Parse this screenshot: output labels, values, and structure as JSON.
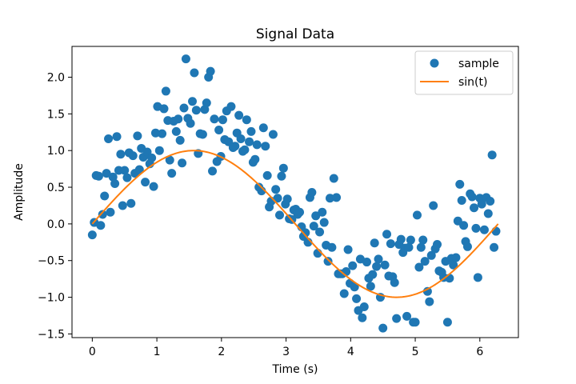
{
  "chart_data": {
    "type": "scatter",
    "title": "Signal Data",
    "xlabel": "Time (s)",
    "ylabel": "Amplitude",
    "xlim": [
      -0.314,
      6.597
    ],
    "ylim": [
      -1.55,
      2.42
    ],
    "xticks": [
      0,
      1,
      2,
      3,
      4,
      5,
      6
    ],
    "yticks": [
      -1.5,
      -1.0,
      -0.5,
      0.0,
      0.5,
      1.0,
      1.5,
      2.0
    ],
    "xtick_labels": [
      "0",
      "1",
      "2",
      "3",
      "4",
      "5",
      "6"
    ],
    "ytick_labels": [
      "−1.5",
      "−1.0",
      "−0.5",
      "0.0",
      "0.5",
      "1.0",
      "1.5",
      "2.0"
    ],
    "grid": false,
    "legend": {
      "placement": "upper right",
      "entries": [
        "sample",
        "sin(t)"
      ]
    },
    "colors": {
      "sample": "#1f77b4",
      "line": "#ff7f0e"
    },
    "series": [
      {
        "name": "sample",
        "kind": "scatter",
        "points": [
          [
            0.0,
            -0.15
          ],
          [
            0.03,
            0.02
          ],
          [
            0.06,
            0.66
          ],
          [
            0.1,
            0.65
          ],
          [
            0.13,
            -0.02
          ],
          [
            0.16,
            0.13
          ],
          [
            0.19,
            0.38
          ],
          [
            0.22,
            0.69
          ],
          [
            0.25,
            1.16
          ],
          [
            0.28,
            0.16
          ],
          [
            0.32,
            0.64
          ],
          [
            0.35,
            0.55
          ],
          [
            0.38,
            1.19
          ],
          [
            0.41,
            0.73
          ],
          [
            0.44,
            0.95
          ],
          [
            0.47,
            0.25
          ],
          [
            0.5,
            0.73
          ],
          [
            0.54,
            0.63
          ],
          [
            0.57,
            0.97
          ],
          [
            0.6,
            0.28
          ],
          [
            0.63,
            0.93
          ],
          [
            0.66,
            0.69
          ],
          [
            0.7,
            1.2
          ],
          [
            0.73,
            0.74
          ],
          [
            0.76,
            1.03
          ],
          [
            0.79,
            0.91
          ],
          [
            0.82,
            0.57
          ],
          [
            0.85,
            0.98
          ],
          [
            0.89,
            0.82
          ],
          [
            0.92,
            0.9
          ],
          [
            0.95,
            0.51
          ],
          [
            0.98,
            1.24
          ],
          [
            1.01,
            1.6
          ],
          [
            1.04,
            1.0
          ],
          [
            1.08,
            1.23
          ],
          [
            1.11,
            1.57
          ],
          [
            1.14,
            1.81
          ],
          [
            1.17,
            1.41
          ],
          [
            1.2,
            0.87
          ],
          [
            1.23,
            0.69
          ],
          [
            1.26,
            1.4
          ],
          [
            1.3,
            1.26
          ],
          [
            1.33,
            1.43
          ],
          [
            1.36,
            1.14
          ],
          [
            1.39,
            0.83
          ],
          [
            1.42,
            1.58
          ],
          [
            1.45,
            2.25
          ],
          [
            1.48,
            1.44
          ],
          [
            1.52,
            1.37
          ],
          [
            1.55,
            1.67
          ],
          [
            1.58,
            2.06
          ],
          [
            1.61,
            1.55
          ],
          [
            1.64,
            0.96
          ],
          [
            1.67,
            1.23
          ],
          [
            1.71,
            1.22
          ],
          [
            1.74,
            1.56
          ],
          [
            1.77,
            1.65
          ],
          [
            1.8,
            2.0
          ],
          [
            1.83,
            2.08
          ],
          [
            1.86,
            0.72
          ],
          [
            1.89,
            1.43
          ],
          [
            1.93,
            0.85
          ],
          [
            1.96,
            1.28
          ],
          [
            1.99,
            0.92
          ],
          [
            2.02,
            1.42
          ],
          [
            2.05,
            1.15
          ],
          [
            2.08,
            1.54
          ],
          [
            2.11,
            1.12
          ],
          [
            2.15,
            1.6
          ],
          [
            2.18,
            1.04
          ],
          [
            2.21,
            1.06
          ],
          [
            2.24,
            1.24
          ],
          [
            2.27,
            1.48
          ],
          [
            2.3,
            1.16
          ],
          [
            2.33,
            0.99
          ],
          [
            2.36,
            1.01
          ],
          [
            2.39,
            1.42
          ],
          [
            2.43,
            1.12
          ],
          [
            2.46,
            1.26
          ],
          [
            2.49,
            0.84
          ],
          [
            2.52,
            0.88
          ],
          [
            2.55,
            1.08
          ],
          [
            2.58,
            0.5
          ],
          [
            2.62,
            0.45
          ],
          [
            2.65,
            1.31
          ],
          [
            2.68,
            1.06
          ],
          [
            2.71,
            0.66
          ],
          [
            2.74,
            0.23
          ],
          [
            2.77,
            0.31
          ],
          [
            2.8,
            1.22
          ],
          [
            2.84,
            0.47
          ],
          [
            2.87,
            0.35
          ],
          [
            2.9,
            0.12
          ],
          [
            2.93,
            0.65
          ],
          [
            2.96,
            0.76
          ],
          [
            2.99,
            0.27
          ],
          [
            3.02,
            0.34
          ],
          [
            3.05,
            0.07
          ],
          [
            3.09,
            0.06
          ],
          [
            3.12,
            0.19
          ],
          [
            3.15,
            0.2
          ],
          [
            3.18,
            0.13
          ],
          [
            3.21,
            0.16
          ],
          [
            3.24,
            -0.04
          ],
          [
            3.27,
            -0.17
          ],
          [
            3.3,
            -0.12
          ],
          [
            3.34,
            -0.25
          ],
          [
            3.37,
            0.36
          ],
          [
            3.4,
            0.43
          ],
          [
            3.43,
            -0.03
          ],
          [
            3.46,
            0.11
          ],
          [
            3.49,
            -0.4
          ],
          [
            3.52,
            -0.11
          ],
          [
            3.56,
            0.16
          ],
          [
            3.59,
            0.02
          ],
          [
            3.62,
            -0.29
          ],
          [
            3.65,
            -0.51
          ],
          [
            3.68,
            0.35
          ],
          [
            3.71,
            -0.32
          ],
          [
            3.74,
            0.62
          ],
          [
            3.78,
            0.36
          ],
          [
            3.81,
            -0.68
          ],
          [
            3.84,
            -0.68
          ],
          [
            3.87,
            -0.68
          ],
          [
            3.9,
            -0.95
          ],
          [
            3.93,
            -0.65
          ],
          [
            3.96,
            -0.35
          ],
          [
            3.99,
            -0.81
          ],
          [
            4.03,
            -0.57
          ],
          [
            4.06,
            -0.86
          ],
          [
            4.09,
            -1.02
          ],
          [
            4.12,
            -1.18
          ],
          [
            4.15,
            -0.48
          ],
          [
            4.18,
            -1.28
          ],
          [
            4.21,
            -1.13
          ],
          [
            4.25,
            -0.52
          ],
          [
            4.28,
            -0.74
          ],
          [
            4.31,
            -0.85
          ],
          [
            4.34,
            -0.69
          ],
          [
            4.37,
            -0.26
          ],
          [
            4.4,
            -0.58
          ],
          [
            4.43,
            -0.48
          ],
          [
            4.46,
            -1.0
          ],
          [
            4.5,
            -1.42
          ],
          [
            4.53,
            -0.56
          ],
          [
            4.56,
            -0.14
          ],
          [
            4.59,
            -0.71
          ],
          [
            4.62,
            -0.27
          ],
          [
            4.65,
            -0.72
          ],
          [
            4.68,
            -0.8
          ],
          [
            4.71,
            -1.29
          ],
          [
            4.75,
            -0.28
          ],
          [
            4.78,
            -0.21
          ],
          [
            4.81,
            -0.39
          ],
          [
            4.84,
            -0.33
          ],
          [
            4.87,
            -1.26
          ],
          [
            4.9,
            -0.32
          ],
          [
            4.93,
            -0.22
          ],
          [
            4.97,
            -1.34
          ],
          [
            5.0,
            -1.34
          ],
          [
            5.03,
            0.12
          ],
          [
            5.06,
            -0.59
          ],
          [
            5.09,
            -0.32
          ],
          [
            5.12,
            -0.22
          ],
          [
            5.15,
            -0.51
          ],
          [
            5.19,
            -0.92
          ],
          [
            5.22,
            -1.06
          ],
          [
            5.25,
            -0.43
          ],
          [
            5.28,
            0.25
          ],
          [
            5.31,
            -0.34
          ],
          [
            5.34,
            -0.28
          ],
          [
            5.37,
            -0.64
          ],
          [
            5.41,
            -0.66
          ],
          [
            5.44,
            -0.73
          ],
          [
            5.47,
            -0.51
          ],
          [
            5.5,
            -1.34
          ],
          [
            5.53,
            -0.74
          ],
          [
            5.56,
            -0.47
          ],
          [
            5.59,
            -0.56
          ],
          [
            5.63,
            -0.46
          ],
          [
            5.66,
            0.04
          ],
          [
            5.69,
            0.54
          ],
          [
            5.72,
            0.32
          ],
          [
            5.75,
            -0.02
          ],
          [
            5.78,
            -0.24
          ],
          [
            5.81,
            -0.31
          ],
          [
            5.85,
            0.41
          ],
          [
            5.88,
            0.37
          ],
          [
            5.91,
            0.22
          ],
          [
            5.94,
            -0.06
          ],
          [
            5.97,
            -0.73
          ],
          [
            6.0,
            0.35
          ],
          [
            6.03,
            0.27
          ],
          [
            6.07,
            -0.08
          ],
          [
            6.1,
            0.36
          ],
          [
            6.13,
            0.14
          ],
          [
            6.16,
            0.31
          ],
          [
            6.19,
            0.94
          ],
          [
            6.22,
            -0.32
          ],
          [
            6.25,
            -0.1
          ]
        ]
      },
      {
        "name": "sin(t)",
        "kind": "line",
        "function": "sin(t)",
        "x_range": [
          0,
          6.283
        ],
        "samples": 200
      }
    ]
  }
}
